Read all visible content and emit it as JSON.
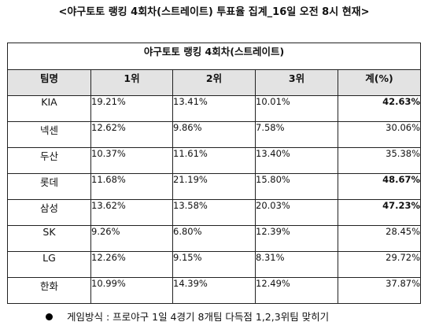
{
  "title": "<야구토토 랭킹 4회차(스트레이트) 투표율 집계_16일 오전 8시 현재>",
  "table": {
    "caption": "야구토토 랭킹 4회차(스트레이트)",
    "headers": [
      "팀명",
      "1위",
      "2위",
      "3위",
      "계(%)"
    ],
    "rows": [
      {
        "team": "KIA",
        "p1": "19.21%",
        "p2": "13.41%",
        "p3": "10.01%",
        "total": "42.63%",
        "highlight": true
      },
      {
        "team": "넥센",
        "p1": "12.62%",
        "p2": "9.86%",
        "p3": "7.58%",
        "total": "30.06%",
        "highlight": false
      },
      {
        "team": "두산",
        "p1": "10.37%",
        "p2": "11.61%",
        "p3": "13.40%",
        "total": "35.38%",
        "highlight": false
      },
      {
        "team": "롯데",
        "p1": "11.68%",
        "p2": "21.19%",
        "p3": "15.80%",
        "total": "48.67%",
        "highlight": true
      },
      {
        "team": "삼성",
        "p1": "13.62%",
        "p2": "13.58%",
        "p3": "20.03%",
        "total": "47.23%",
        "highlight": true
      },
      {
        "team": "SK",
        "p1": "9.26%",
        "p2": "6.80%",
        "p3": "12.39%",
        "total": "28.45%",
        "highlight": false
      },
      {
        "team": "LG",
        "p1": "12.26%",
        "p2": "9.15%",
        "p3": "8.31%",
        "total": "29.72%",
        "highlight": false
      },
      {
        "team": "한화",
        "p1": "10.99%",
        "p2": "14.39%",
        "p3": "12.49%",
        "total": "37.87%",
        "highlight": false
      }
    ]
  },
  "note": "게임방식 : 프로야구 1일 4경기 8개팀 다득점 1,2,3위팀 맞히기"
}
